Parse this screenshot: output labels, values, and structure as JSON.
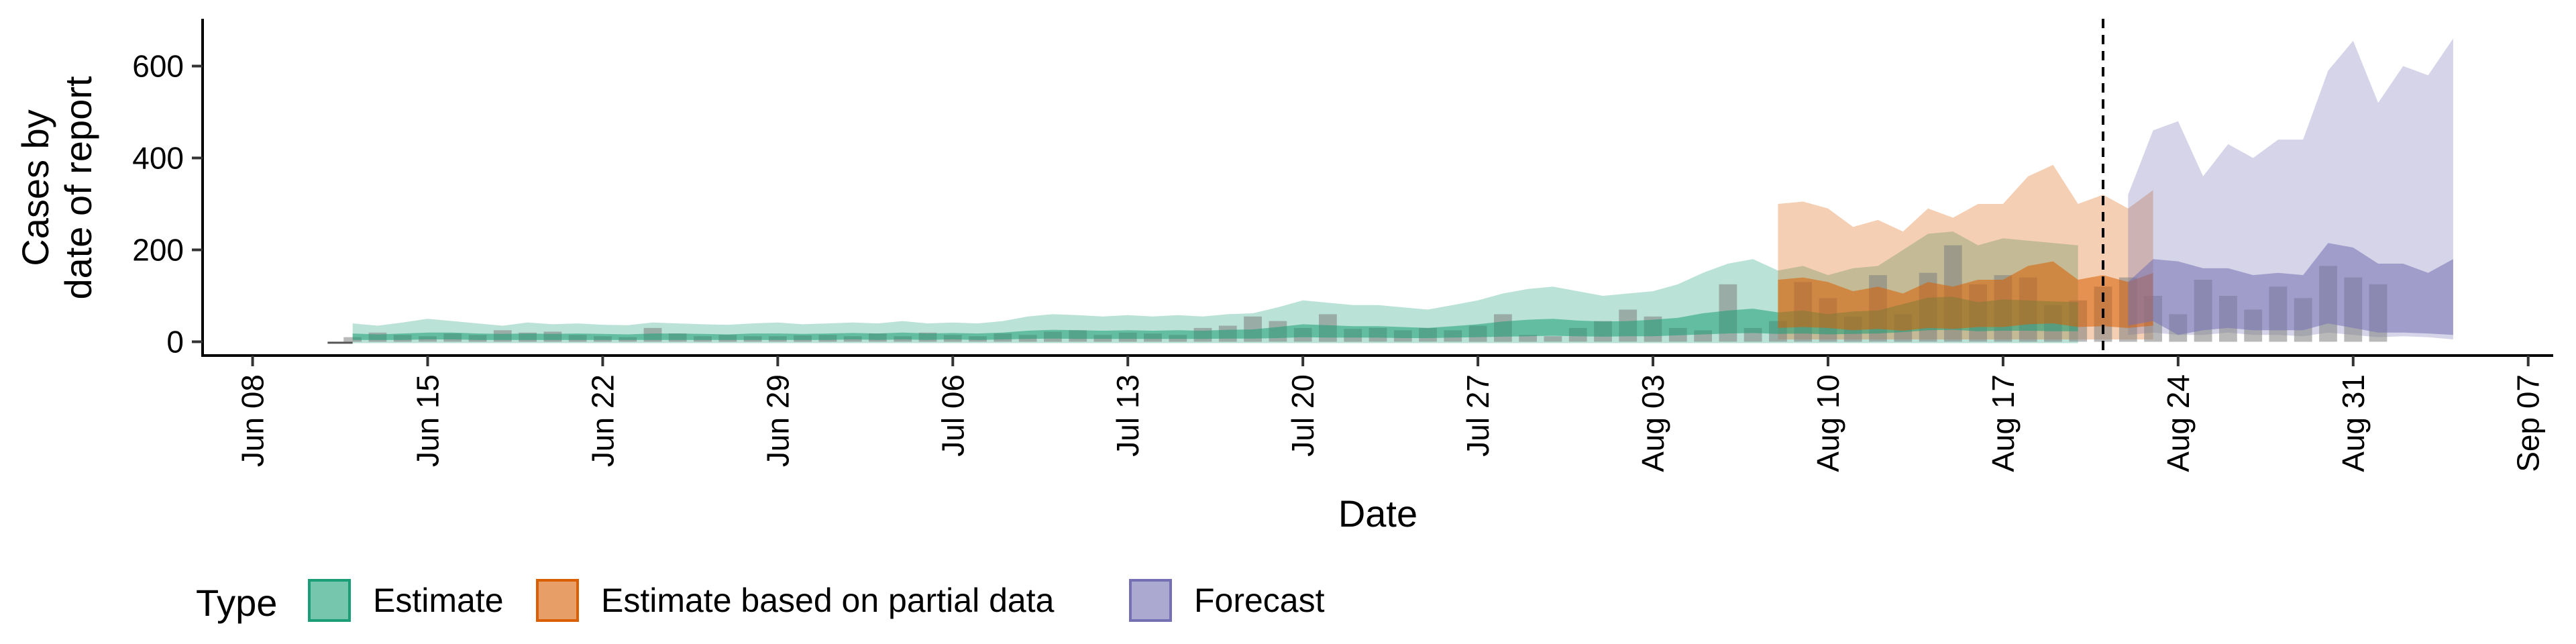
{
  "chart_data": {
    "type": "area",
    "xlabel": "Date",
    "ylabel_lines": [
      "Cases by",
      "date of report"
    ],
    "x_start": "2020-06-06",
    "x_end": "2020-09-08",
    "ylim": [
      -30,
      700
    ],
    "y_ticks": [
      0,
      200,
      400,
      600
    ],
    "x_ticks": [
      {
        "date": "2020-06-08",
        "label": "Jun 08"
      },
      {
        "date": "2020-06-15",
        "label": "Jun 15"
      },
      {
        "date": "2020-06-22",
        "label": "Jun 22"
      },
      {
        "date": "2020-06-29",
        "label": "Jun 29"
      },
      {
        "date": "2020-07-06",
        "label": "Jul 06"
      },
      {
        "date": "2020-07-13",
        "label": "Jul 13"
      },
      {
        "date": "2020-07-20",
        "label": "Jul 20"
      },
      {
        "date": "2020-07-27",
        "label": "Jul 27"
      },
      {
        "date": "2020-08-03",
        "label": "Aug 03"
      },
      {
        "date": "2020-08-10",
        "label": "Aug 10"
      },
      {
        "date": "2020-08-17",
        "label": "Aug 17"
      },
      {
        "date": "2020-08-24",
        "label": "Aug 24"
      },
      {
        "date": "2020-08-31",
        "label": "Aug 31"
      },
      {
        "date": "2020-09-07",
        "label": "Sep 07"
      }
    ],
    "vline_date": "2020-08-21",
    "legend": {
      "title": "Type",
      "position": "bottom",
      "items": [
        {
          "label": "Estimate",
          "color": "#1b9e77"
        },
        {
          "label": "Estimate based on partial data",
          "color": "#d95f02"
        },
        {
          "label": "Forecast",
          "color": "#7570b3"
        }
      ]
    },
    "series": [
      {
        "name": "Estimate",
        "color": "#1b9e77",
        "start": "2020-06-12",
        "outer_upper": [
          40,
          35,
          42,
          50,
          45,
          40,
          35,
          42,
          38,
          40,
          37,
          36,
          42,
          40,
          38,
          37,
          40,
          42,
          38,
          40,
          42,
          40,
          45,
          40,
          42,
          40,
          45,
          55,
          60,
          58,
          55,
          58,
          55,
          58,
          55,
          60,
          62,
          75,
          90,
          85,
          80,
          80,
          75,
          70,
          80,
          90,
          105,
          115,
          120,
          110,
          100,
          105,
          110,
          125,
          150,
          170,
          180,
          155,
          165,
          145,
          160,
          165,
          200,
          235,
          240,
          210,
          225,
          220,
          215,
          210
        ],
        "outer_lower": [
          -3,
          -3,
          -3,
          -3,
          -3,
          -3,
          -3,
          -3,
          -3,
          -3,
          -3,
          -3,
          -3,
          -3,
          -3,
          -3,
          -3,
          -3,
          -3,
          -3,
          -3,
          -3,
          -3,
          -3,
          -3,
          -3,
          -3,
          -3,
          -3,
          -3,
          -3,
          -3,
          -3,
          -3,
          -3,
          -3,
          -3,
          -3,
          -3,
          -3,
          -3,
          -3,
          -3,
          -3,
          -3,
          -3,
          -3,
          -3,
          -3,
          -3,
          -3,
          -3,
          -3,
          -3,
          -3,
          -3,
          -3,
          -3,
          -3,
          -3,
          -3,
          -3,
          -3,
          -3,
          -3,
          -3,
          -3,
          -3,
          -3,
          -3
        ],
        "inner_upper": [
          18,
          16,
          18,
          20,
          20,
          18,
          17,
          18,
          17,
          18,
          17,
          16,
          18,
          18,
          17,
          16,
          18,
          18,
          17,
          18,
          19,
          18,
          20,
          18,
          19,
          18,
          20,
          24,
          26,
          25,
          24,
          25,
          24,
          25,
          24,
          26,
          27,
          32,
          38,
          36,
          34,
          34,
          32,
          30,
          34,
          38,
          44,
          48,
          50,
          46,
          44,
          45,
          48,
          52,
          62,
          68,
          72,
          64,
          68,
          60,
          66,
          68,
          82,
          96,
          98,
          86,
          92,
          90,
          88,
          86
        ],
        "inner_lower": [
          4,
          4,
          4,
          5,
          5,
          4,
          4,
          4,
          4,
          4,
          4,
          4,
          4,
          4,
          4,
          4,
          4,
          4,
          4,
          4,
          5,
          4,
          5,
          4,
          5,
          4,
          5,
          6,
          7,
          6,
          6,
          6,
          6,
          6,
          6,
          7,
          7,
          8,
          10,
          9,
          9,
          9,
          8,
          8,
          9,
          10,
          11,
          12,
          13,
          12,
          11,
          12,
          12,
          14,
          16,
          18,
          19,
          17,
          18,
          16,
          17,
          18,
          21,
          25,
          26,
          23,
          24,
          24,
          23,
          23
        ]
      },
      {
        "name": "Estimate based on partial data",
        "color": "#d95f02",
        "start": "2020-08-08",
        "outer_upper": [
          300,
          305,
          290,
          250,
          265,
          240,
          290,
          270,
          300,
          300,
          360,
          385,
          300,
          320,
          290,
          330
        ],
        "outer_lower": [
          5,
          5,
          5,
          5,
          5,
          5,
          5,
          5,
          5,
          5,
          5,
          5,
          5,
          5,
          5,
          5
        ],
        "inner_upper": [
          135,
          140,
          130,
          110,
          120,
          105,
          130,
          120,
          135,
          135,
          165,
          175,
          135,
          145,
          130,
          150
        ],
        "inner_lower": [
          30,
          32,
          30,
          25,
          28,
          24,
          30,
          28,
          32,
          32,
          38,
          40,
          32,
          34,
          30,
          35
        ]
      },
      {
        "name": "Forecast",
        "color": "#7570b3",
        "start": "2020-08-22",
        "outer_upper": [
          320,
          460,
          480,
          360,
          430,
          400,
          440,
          440,
          590,
          655,
          520,
          600,
          580,
          660
        ],
        "outer_lower": [
          15,
          20,
          15,
          15,
          20,
          15,
          15,
          12,
          20,
          15,
          10,
          12,
          10,
          5
        ],
        "inner_upper": [
          130,
          180,
          175,
          160,
          160,
          145,
          150,
          145,
          215,
          205,
          170,
          170,
          150,
          180
        ],
        "inner_lower": [
          35,
          45,
          15,
          25,
          30,
          25,
          25,
          25,
          40,
          30,
          20,
          20,
          18,
          15
        ]
      }
    ],
    "reported_cases": {
      "start": "2020-06-12",
      "values": [
        10,
        20,
        15,
        12,
        18,
        15,
        25,
        20,
        22,
        15,
        12,
        10,
        30,
        18,
        12,
        15,
        12,
        12,
        14,
        15,
        12,
        18,
        12,
        20,
        15,
        12,
        18,
        15,
        22,
        25,
        15,
        20,
        18,
        15,
        30,
        35,
        55,
        45,
        30,
        60,
        28,
        30,
        25,
        30,
        25,
        35,
        60,
        15,
        12,
        30,
        45,
        70,
        55,
        30,
        25,
        125,
        30,
        45,
        130,
        95,
        55,
        145,
        60,
        150,
        210,
        125,
        145,
        140,
        80,
        90,
        120,
        140,
        100,
        60,
        135,
        100,
        70,
        120,
        95,
        165,
        140,
        125
      ]
    }
  }
}
